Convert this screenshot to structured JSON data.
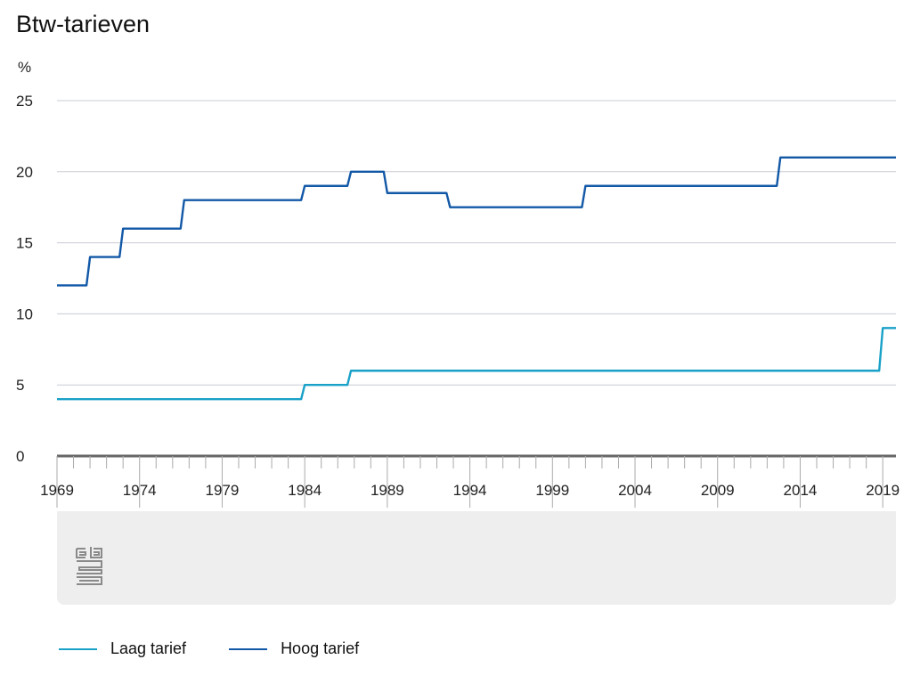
{
  "title": "Btw-tarieven",
  "chart_data": {
    "type": "line",
    "title": "Btw-tarieven",
    "ylabel": "%",
    "xlabel": "",
    "ylim": [
      0,
      25
    ],
    "yticks": [
      0,
      5,
      10,
      15,
      20,
      25
    ],
    "xlim": [
      1969,
      2019.8
    ],
    "xtick_labels": [
      "1969",
      "1974",
      "1979",
      "1984",
      "1989",
      "1994",
      "1999",
      "2004",
      "2009",
      "2014",
      "2019"
    ],
    "grid": true,
    "legend_position": "bottom",
    "series": [
      {
        "name": "Laag tarief",
        "color": "#1aa1c8",
        "step": true,
        "x": [
          1969,
          1984,
          1986.8,
          2019,
          2019.8
        ],
        "y": [
          4,
          5,
          6,
          9,
          9
        ]
      },
      {
        "name": "Hoog tarief",
        "color": "#1258a7",
        "step": true,
        "x": [
          1969,
          1971,
          1973,
          1976.7,
          1984,
          1986.8,
          1989,
          1992.8,
          2001,
          2012.8,
          2019.8
        ],
        "y": [
          12,
          14,
          16,
          18,
          19,
          20,
          18.5,
          17.5,
          19,
          21,
          21
        ]
      }
    ]
  }
}
